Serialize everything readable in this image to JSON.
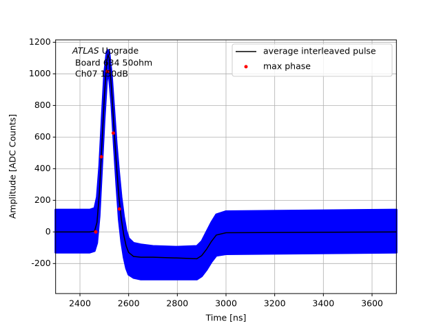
{
  "chart_data": {
    "type": "line",
    "xlabel": "Time [ns]",
    "ylabel": "Amplitude [ADC Counts]",
    "annotation": [
      "ATLAS",
      "Upgrade",
      "Board 634 50ohm",
      "Ch07 150dB"
    ],
    "xlim": [
      2300,
      3700
    ],
    "ylim": [
      -390,
      1215
    ],
    "xticks": [
      2400,
      2600,
      2800,
      3000,
      3200,
      3400,
      3600
    ],
    "yticks": [
      -200,
      0,
      200,
      400,
      600,
      800,
      1000,
      1200
    ],
    "grid": true,
    "legend": "upper right",
    "series": [
      {
        "style": "band",
        "color": "#0000ff",
        "x": [
          2300,
          2440,
          2460,
          2470,
          2480,
          2490,
          2500,
          2510,
          2515,
          2520,
          2530,
          2540,
          2550,
          2560,
          2570,
          2580,
          2590,
          2600,
          2620,
          2650,
          2700,
          2800,
          2880,
          2900,
          2920,
          2940,
          2960,
          3000,
          3700
        ],
        "upper": [
          140,
          140,
          150,
          220,
          420,
          720,
          1000,
          1140,
          1150,
          1140,
          1000,
          780,
          560,
          380,
          220,
          100,
          10,
          -40,
          -70,
          -80,
          -90,
          -95,
          -90,
          -60,
          0,
          60,
          110,
          130,
          140
        ],
        "lower": [
          -130,
          -130,
          -120,
          -70,
          100,
          400,
          700,
          950,
          1000,
          980,
          800,
          540,
          300,
          80,
          -60,
          -160,
          -230,
          -270,
          -290,
          -300,
          -300,
          -300,
          -300,
          -280,
          -240,
          -190,
          -150,
          -140,
          -130
        ]
      },
      {
        "style": "line",
        "name": "average interleaved pulse",
        "color": "#000000",
        "x": [
          2300,
          2440,
          2460,
          2470,
          2480,
          2490,
          2500,
          2510,
          2515,
          2520,
          2530,
          2540,
          2550,
          2560,
          2570,
          2580,
          2590,
          2600,
          2620,
          2650,
          2700,
          2800,
          2880,
          2900,
          2920,
          2940,
          2960,
          3000,
          3700
        ],
        "values": [
          0,
          0,
          5,
          60,
          250,
          550,
          850,
          1080,
          1120,
          1100,
          900,
          650,
          420,
          220,
          80,
          -20,
          -90,
          -130,
          -155,
          -160,
          -160,
          -165,
          -170,
          -150,
          -110,
          -60,
          -20,
          -5,
          0
        ]
      },
      {
        "style": "points",
        "name": "max phase",
        "color": "#ff0000",
        "x": [
          2465,
          2488,
          2513,
          2537,
          2562
        ],
        "values": [
          0,
          475,
          1015,
          625,
          145
        ]
      }
    ]
  }
}
